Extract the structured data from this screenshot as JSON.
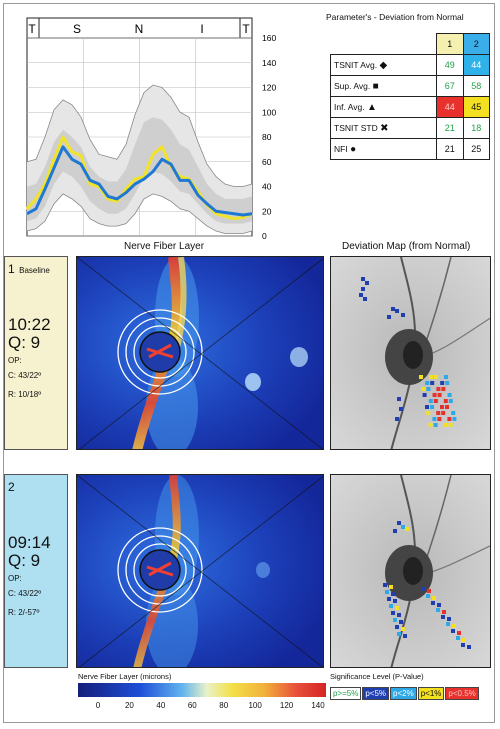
{
  "tsnit_labels": [
    "T",
    "S",
    "N",
    "I",
    "T"
  ],
  "chart_data": {
    "type": "line",
    "title": "",
    "xlabel": "",
    "ylabel": "",
    "ylim": [
      0,
      160
    ],
    "yticks": [
      0,
      20,
      40,
      60,
      80,
      100,
      120,
      140,
      160
    ],
    "x": [
      0,
      4,
      8,
      12,
      16,
      20,
      24,
      28,
      32,
      36,
      40,
      44,
      48,
      52,
      56,
      60,
      64,
      68,
      72,
      76,
      80,
      84,
      88,
      92,
      96,
      100
    ],
    "series": [
      {
        "values": [
          22,
          30,
          42,
          62,
          80,
          68,
          65,
          42,
          40,
          30,
          28,
          38,
          46,
          48,
          66,
          72,
          56,
          48,
          46,
          36,
          25,
          18,
          16,
          14,
          15,
          18
        ],
        "color": "#f1e22a"
      },
      {
        "values": [
          18,
          22,
          38,
          55,
          72,
          62,
          58,
          45,
          42,
          32,
          30,
          35,
          42,
          46,
          52,
          62,
          58,
          45,
          45,
          33,
          26,
          20,
          19,
          18,
          17,
          18
        ],
        "color": "#1f78d1"
      }
    ],
    "normal_band": {
      "upper": [
        60,
        62,
        80,
        102,
        110,
        106,
        96,
        78,
        66,
        64,
        62,
        74,
        98,
        116,
        122,
        120,
        112,
        100,
        96,
        76,
        58,
        48,
        42,
        40,
        40,
        42
      ],
      "upper_mid": [
        40,
        42,
        56,
        76,
        86,
        80,
        72,
        56,
        48,
        44,
        44,
        54,
        74,
        92,
        96,
        94,
        86,
        74,
        70,
        56,
        42,
        34,
        30,
        30,
        30,
        32
      ],
      "lower_mid": [
        12,
        14,
        24,
        42,
        52,
        48,
        40,
        28,
        22,
        18,
        18,
        22,
        34,
        48,
        52,
        50,
        44,
        36,
        34,
        26,
        18,
        12,
        10,
        10,
        10,
        12
      ],
      "lower": [
        4,
        6,
        12,
        26,
        34,
        30,
        24,
        14,
        10,
        8,
        8,
        10,
        18,
        30,
        34,
        32,
        28,
        22,
        20,
        14,
        8,
        4,
        2,
        2,
        2,
        4
      ]
    }
  },
  "params": {
    "title": "Parameter's - Deviation from Normal",
    "col1": "1",
    "col2": "2",
    "rows": [
      {
        "label": "TSNIT Avg.",
        "symbol": "◆",
        "v1": "49",
        "v2": "44"
      },
      {
        "label": "Sup. Avg.",
        "symbol": "■",
        "v1": "67",
        "v2": "58"
      },
      {
        "label": "Inf. Avg.",
        "symbol": "▲",
        "v1": "44",
        "v2": "45"
      },
      {
        "label": "TSNIT STD",
        "symbol": "✖",
        "v1": "21",
        "v2": "18"
      },
      {
        "label": "NFI",
        "symbol": "●",
        "v1": "21",
        "v2": "25"
      }
    ]
  },
  "section_titles": {
    "nfl": "Nerve Fiber Layer",
    "dev": "Deviation Map (from Normal)"
  },
  "exam1": {
    "num": "1",
    "tag": "Baseline",
    "time": "10:22",
    "q": "Q: 9",
    "op": "OP:",
    "c": "C: 43/22º",
    "r": "R: 10/18º",
    "panel_color": "#f6f2cf"
  },
  "exam2": {
    "num": "2",
    "tag": "",
    "time": "09:14",
    "q": "Q: 9",
    "op": "OP:",
    "c": "C: 43/22º",
    "r": "R: 2/-57º",
    "panel_color": "#aee0f2"
  },
  "nfl_legend": {
    "title": "Nerve Fiber Layer (microns)",
    "ticks": [
      "0",
      "20",
      "40",
      "60",
      "80",
      "100",
      "120",
      "140"
    ]
  },
  "sig_legend": {
    "title": "Significance Level (P-Value)",
    "items": [
      {
        "label": "p>=5%",
        "bg": "#ffffff",
        "fg": "#22a04a"
      },
      {
        "label": "p<5%",
        "bg": "#1f3fb0",
        "fg": "#ffffff"
      },
      {
        "label": "p<2%",
        "bg": "#2fa8e8",
        "fg": "#ffffff"
      },
      {
        "label": "p<1%",
        "bg": "#f3e020",
        "fg": "#111111"
      },
      {
        "label": "p<0.5%",
        "bg": "#e8312c",
        "fg": "#f7c0c0"
      }
    ]
  }
}
